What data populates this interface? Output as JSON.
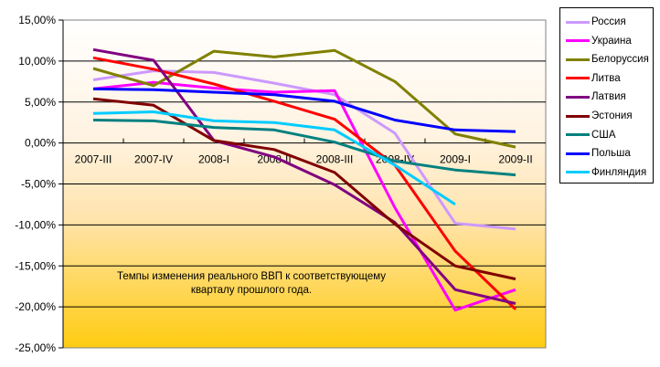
{
  "chart_data": {
    "type": "line",
    "title": "",
    "xlabel": "",
    "ylabel": "",
    "ylim": [
      -25,
      15
    ],
    "ytick_step": 5,
    "ytick_labels": [
      "15,00%",
      "10,00%",
      "5,00%",
      "0,00%",
      "-5,00%",
      "-10,00%",
      "-15,00%",
      "-20,00%",
      "-25,00%"
    ],
    "grid": true,
    "legend_position": "right",
    "categories": [
      "2007-III",
      "2007-IV",
      "2008-I",
      "2008-II",
      "2008-III",
      "2008-IV",
      "2009-I",
      "2009-II"
    ],
    "series": [
      {
        "name": "Россия",
        "color": "#CC99FF",
        "values": [
          7.7,
          8.8,
          8.6,
          7.3,
          5.9,
          1.2,
          -9.8,
          -10.5
        ]
      },
      {
        "name": "Украина",
        "color": "#FF00FF",
        "values": [
          6.6,
          7.4,
          6.7,
          6.2,
          6.4,
          -7.9,
          -20.4,
          -17.9
        ]
      },
      {
        "name": "Белоруссия",
        "color": "#808000",
        "values": [
          9.1,
          7.0,
          11.2,
          10.5,
          11.3,
          7.5,
          1.1,
          -0.5
        ]
      },
      {
        "name": "Литва",
        "color": "#FF0000",
        "values": [
          10.4,
          9.0,
          7.2,
          5.1,
          2.9,
          -2.7,
          -13.2,
          -20.3
        ]
      },
      {
        "name": "Латвия",
        "color": "#800080",
        "values": [
          11.4,
          10.1,
          0.3,
          -1.7,
          -5.1,
          -9.7,
          -17.9,
          -19.6
        ]
      },
      {
        "name": "Эстония",
        "color": "#800000",
        "values": [
          5.4,
          4.6,
          0.3,
          -0.8,
          -3.6,
          -9.9,
          -15.0,
          -16.6
        ]
      },
      {
        "name": "США",
        "color": "#008080",
        "values": [
          2.8,
          2.7,
          1.9,
          1.6,
          0.1,
          -2.2,
          -3.3,
          -3.9
        ]
      },
      {
        "name": "Польша",
        "color": "#0000FF",
        "values": [
          6.6,
          6.5,
          6.2,
          5.9,
          5.1,
          2.8,
          1.6,
          1.4
        ]
      },
      {
        "name": "Финляндия",
        "color": "#00CCFF",
        "values": [
          3.6,
          3.8,
          2.7,
          2.5,
          1.6,
          -2.7,
          -7.5,
          null
        ]
      }
    ],
    "annotations": [
      "Темпы изменения реального ВВП к соответствующему кварталу прошлого года."
    ]
  },
  "annotation": {
    "line1": "Темпы изменения реального ВВП к соответствующему",
    "line2": "кварталу прошлого года."
  },
  "colors": {
    "plot_bg_top": "#FFFFFF",
    "plot_bg_bottom": "#FFCC00",
    "plot_border": "#808080",
    "gridline": "#000000"
  }
}
